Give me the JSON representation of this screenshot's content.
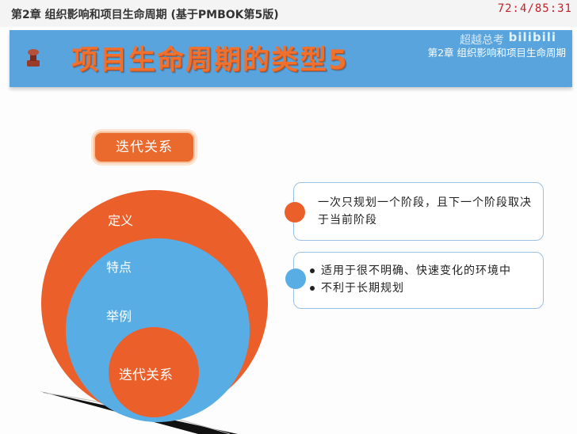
{
  "window": {
    "title": "第2章 组织影响和项目生命周期 (基于PMBOK第5版)",
    "timer": "72:4/85:31"
  },
  "slide": {
    "main_title": "项目生命周期的类型5",
    "subtitle": "第2章 组织影响和项目生命周期",
    "watermark": "超越总考",
    "logo_text": "bilibili",
    "pill_label": "迭代关系",
    "circles": {
      "outer_label": "定义",
      "middle_label": "特点",
      "inner_label": "举例",
      "core_label": "迭代关系"
    },
    "box1_text": "一次只规划一个阶段，且下一个阶段取决于当前阶段",
    "box2_items": [
      "适用于很不明确、快速变化的环境中",
      "不利于长期规划"
    ]
  },
  "colors": {
    "banner": "#5aa4dd",
    "orange": "#ea5f2a",
    "blue": "#58aee4",
    "title_orange": "#f0702e"
  }
}
